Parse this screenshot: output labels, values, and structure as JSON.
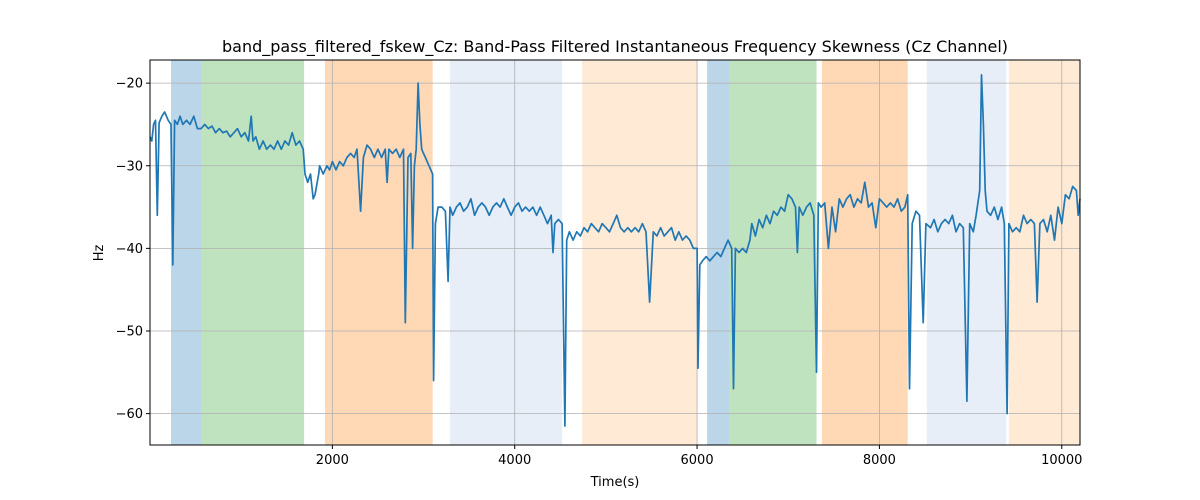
{
  "chart_data": {
    "type": "line",
    "title": "band_pass_filtered_fskew_Cz: Band-Pass Filtered Instantaneous Frequency Skewness (Cz Channel)",
    "xlabel": "Time(s)",
    "ylabel": "Hz",
    "xlim": [
      0,
      10200
    ],
    "ylim": [
      -63.8,
      -17.2
    ],
    "grid": true,
    "x_ticks": [
      2000,
      4000,
      6000,
      8000,
      10000
    ],
    "y_ticks": [
      -20,
      -30,
      -40,
      -50,
      -60
    ],
    "line_color": "#1f77b4",
    "bands": [
      {
        "start": 230,
        "end": 560,
        "color": "#1f77b4",
        "opacity": 0.3
      },
      {
        "start": 560,
        "end": 1690,
        "color": "#2ca02c",
        "opacity": 0.3
      },
      {
        "start": 1920,
        "end": 3100,
        "color": "#ff7f0e",
        "opacity": 0.3
      },
      {
        "start": 3290,
        "end": 4520,
        "color": "#aec7e8",
        "opacity": 0.3
      },
      {
        "start": 4740,
        "end": 6000,
        "color": "#ffbb78",
        "opacity": 0.3
      },
      {
        "start": 6110,
        "end": 6350,
        "color": "#1f77b4",
        "opacity": 0.3
      },
      {
        "start": 6350,
        "end": 7310,
        "color": "#2ca02c",
        "opacity": 0.3
      },
      {
        "start": 7370,
        "end": 8310,
        "color": "#ff7f0e",
        "opacity": 0.3
      },
      {
        "start": 8520,
        "end": 9390,
        "color": "#aec7e8",
        "opacity": 0.3
      },
      {
        "start": 9420,
        "end": 10200,
        "color": "#ffbb78",
        "opacity": 0.3
      }
    ],
    "series": [
      {
        "points": [
          [
            0,
            -26.5
          ],
          [
            20,
            -27
          ],
          [
            40,
            -25
          ],
          [
            60,
            -24.5
          ],
          [
            80,
            -36
          ],
          [
            100,
            -24.8
          ],
          [
            130,
            -24
          ],
          [
            160,
            -23.5
          ],
          [
            200,
            -24.5
          ],
          [
            230,
            -25
          ],
          [
            250,
            -42
          ],
          [
            270,
            -24.5
          ],
          [
            300,
            -25
          ],
          [
            330,
            -24
          ],
          [
            360,
            -25
          ],
          [
            400,
            -24.5
          ],
          [
            440,
            -25
          ],
          [
            480,
            -24
          ],
          [
            520,
            -25.5
          ],
          [
            560,
            -25.5
          ],
          [
            600,
            -25
          ],
          [
            640,
            -25.5
          ],
          [
            680,
            -25.2
          ],
          [
            720,
            -26
          ],
          [
            760,
            -25.5
          ],
          [
            800,
            -26
          ],
          [
            840,
            -25.8
          ],
          [
            880,
            -26.5
          ],
          [
            920,
            -26
          ],
          [
            960,
            -25.5
          ],
          [
            1000,
            -26.5
          ],
          [
            1040,
            -26
          ],
          [
            1080,
            -27
          ],
          [
            1110,
            -24
          ],
          [
            1130,
            -27
          ],
          [
            1160,
            -26.5
          ],
          [
            1200,
            -28
          ],
          [
            1240,
            -27
          ],
          [
            1280,
            -28
          ],
          [
            1320,
            -27.5
          ],
          [
            1360,
            -28
          ],
          [
            1400,
            -27
          ],
          [
            1440,
            -28
          ],
          [
            1480,
            -27
          ],
          [
            1520,
            -27.5
          ],
          [
            1560,
            -26
          ],
          [
            1600,
            -27.5
          ],
          [
            1640,
            -27
          ],
          [
            1680,
            -28
          ],
          [
            1700,
            -31
          ],
          [
            1730,
            -32
          ],
          [
            1760,
            -31
          ],
          [
            1790,
            -34
          ],
          [
            1810,
            -33.5
          ],
          [
            1850,
            -31
          ],
          [
            1860,
            -30
          ],
          [
            1900,
            -31
          ],
          [
            1940,
            -30
          ],
          [
            1970,
            -30.5
          ],
          [
            2000,
            -29.5
          ],
          [
            2040,
            -30.5
          ],
          [
            2080,
            -29.5
          ],
          [
            2120,
            -30
          ],
          [
            2160,
            -29
          ],
          [
            2200,
            -28.5
          ],
          [
            2240,
            -29
          ],
          [
            2270,
            -28
          ],
          [
            2310,
            -35.5
          ],
          [
            2340,
            -29
          ],
          [
            2380,
            -27.5
          ],
          [
            2420,
            -28
          ],
          [
            2460,
            -29
          ],
          [
            2500,
            -28
          ],
          [
            2540,
            -29
          ],
          [
            2580,
            -28
          ],
          [
            2600,
            -32
          ],
          [
            2620,
            -28
          ],
          [
            2660,
            -28.5
          ],
          [
            2700,
            -28
          ],
          [
            2740,
            -29
          ],
          [
            2780,
            -28
          ],
          [
            2800,
            -49
          ],
          [
            2830,
            -29
          ],
          [
            2860,
            -28.5
          ],
          [
            2880,
            -40
          ],
          [
            2900,
            -30
          ],
          [
            2920,
            -28
          ],
          [
            2940,
            -20
          ],
          [
            2960,
            -25
          ],
          [
            2980,
            -28
          ],
          [
            3000,
            -28.5
          ],
          [
            3020,
            -29
          ],
          [
            3060,
            -30
          ],
          [
            3100,
            -31
          ],
          [
            3110,
            -56
          ],
          [
            3130,
            -37
          ],
          [
            3160,
            -35
          ],
          [
            3200,
            -35
          ],
          [
            3240,
            -35.5
          ],
          [
            3270,
            -44
          ],
          [
            3290,
            -35
          ],
          [
            3320,
            -36
          ],
          [
            3360,
            -35
          ],
          [
            3400,
            -34.5
          ],
          [
            3440,
            -35.5
          ],
          [
            3480,
            -35
          ],
          [
            3520,
            -34
          ],
          [
            3560,
            -36
          ],
          [
            3600,
            -35
          ],
          [
            3640,
            -34.5
          ],
          [
            3680,
            -35
          ],
          [
            3720,
            -36
          ],
          [
            3760,
            -35
          ],
          [
            3800,
            -34.5
          ],
          [
            3840,
            -35
          ],
          [
            3880,
            -34
          ],
          [
            3920,
            -35
          ],
          [
            3960,
            -36
          ],
          [
            4000,
            -35
          ],
          [
            4040,
            -34.5
          ],
          [
            4080,
            -35.5
          ],
          [
            4120,
            -35
          ],
          [
            4160,
            -35.5
          ],
          [
            4200,
            -35
          ],
          [
            4240,
            -36
          ],
          [
            4280,
            -35
          ],
          [
            4320,
            -36
          ],
          [
            4360,
            -37
          ],
          [
            4400,
            -36
          ],
          [
            4420,
            -40.5
          ],
          [
            4440,
            -37
          ],
          [
            4480,
            -36.5
          ],
          [
            4520,
            -37
          ],
          [
            4550,
            -61.5
          ],
          [
            4570,
            -39
          ],
          [
            4600,
            -38
          ],
          [
            4640,
            -39
          ],
          [
            4680,
            -38
          ],
          [
            4720,
            -38.5
          ],
          [
            4760,
            -37.5
          ],
          [
            4800,
            -38
          ],
          [
            4840,
            -37
          ],
          [
            4880,
            -37.5
          ],
          [
            4920,
            -38
          ],
          [
            4960,
            -37
          ],
          [
            5000,
            -37.5
          ],
          [
            5040,
            -38
          ],
          [
            5080,
            -37
          ],
          [
            5120,
            -36
          ],
          [
            5160,
            -37.5
          ],
          [
            5200,
            -38
          ],
          [
            5240,
            -37.5
          ],
          [
            5280,
            -38
          ],
          [
            5320,
            -37.5
          ],
          [
            5360,
            -38
          ],
          [
            5400,
            -37
          ],
          [
            5440,
            -38
          ],
          [
            5480,
            -46.5
          ],
          [
            5520,
            -38
          ],
          [
            5560,
            -38.5
          ],
          [
            5600,
            -37.5
          ],
          [
            5640,
            -38.5
          ],
          [
            5680,
            -38
          ],
          [
            5720,
            -37.5
          ],
          [
            5760,
            -39
          ],
          [
            5800,
            -38
          ],
          [
            5840,
            -39
          ],
          [
            5880,
            -38.5
          ],
          [
            5920,
            -39
          ],
          [
            5960,
            -40
          ],
          [
            6000,
            -40
          ],
          [
            6010,
            -54.5
          ],
          [
            6030,
            -42
          ],
          [
            6060,
            -41.5
          ],
          [
            6100,
            -41
          ],
          [
            6140,
            -41.5
          ],
          [
            6180,
            -41
          ],
          [
            6220,
            -40.5
          ],
          [
            6260,
            -41
          ],
          [
            6300,
            -40
          ],
          [
            6340,
            -39
          ],
          [
            6380,
            -40
          ],
          [
            6400,
            -57
          ],
          [
            6420,
            -40
          ],
          [
            6460,
            -40.5
          ],
          [
            6500,
            -40
          ],
          [
            6540,
            -40.5
          ],
          [
            6580,
            -39
          ],
          [
            6600,
            -37
          ],
          [
            6640,
            -38.5
          ],
          [
            6680,
            -36.5
          ],
          [
            6720,
            -37.5
          ],
          [
            6760,
            -36
          ],
          [
            6800,
            -37
          ],
          [
            6840,
            -35.5
          ],
          [
            6880,
            -36
          ],
          [
            6920,
            -35
          ],
          [
            6960,
            -35.5
          ],
          [
            7000,
            -33.5
          ],
          [
            7040,
            -34
          ],
          [
            7080,
            -35
          ],
          [
            7100,
            -40.5
          ],
          [
            7120,
            -35
          ],
          [
            7160,
            -36
          ],
          [
            7200,
            -35
          ],
          [
            7240,
            -34.5
          ],
          [
            7280,
            -36
          ],
          [
            7310,
            -55
          ],
          [
            7330,
            -34.5
          ],
          [
            7360,
            -35
          ],
          [
            7400,
            -34.5
          ],
          [
            7440,
            -40
          ],
          [
            7480,
            -35
          ],
          [
            7520,
            -38
          ],
          [
            7560,
            -34
          ],
          [
            7600,
            -35
          ],
          [
            7640,
            -34
          ],
          [
            7680,
            -33.5
          ],
          [
            7720,
            -35
          ],
          [
            7760,
            -34
          ],
          [
            7800,
            -34.5
          ],
          [
            7840,
            -32
          ],
          [
            7880,
            -35
          ],
          [
            7920,
            -34.5
          ],
          [
            7960,
            -37.5
          ],
          [
            8000,
            -34
          ],
          [
            8040,
            -34.5
          ],
          [
            8080,
            -35
          ],
          [
            8120,
            -34.5
          ],
          [
            8160,
            -35
          ],
          [
            8200,
            -34
          ],
          [
            8240,
            -35.5
          ],
          [
            8280,
            -35
          ],
          [
            8310,
            -33.5
          ],
          [
            8330,
            -57
          ],
          [
            8360,
            -37
          ],
          [
            8400,
            -35.5
          ],
          [
            8440,
            -36
          ],
          [
            8480,
            -49
          ],
          [
            8510,
            -37
          ],
          [
            8560,
            -37.5
          ],
          [
            8600,
            -36.5
          ],
          [
            8640,
            -38
          ],
          [
            8680,
            -37
          ],
          [
            8720,
            -36.5
          ],
          [
            8760,
            -37
          ],
          [
            8800,
            -36
          ],
          [
            8840,
            -38
          ],
          [
            8880,
            -37
          ],
          [
            8920,
            -37.5
          ],
          [
            8960,
            -58.5
          ],
          [
            8990,
            -37
          ],
          [
            9030,
            -38
          ],
          [
            9060,
            -36
          ],
          [
            9100,
            -33
          ],
          [
            9120,
            -19
          ],
          [
            9140,
            -25
          ],
          [
            9160,
            -33
          ],
          [
            9180,
            -35.5
          ],
          [
            9220,
            -36
          ],
          [
            9260,
            -35
          ],
          [
            9300,
            -36.5
          ],
          [
            9340,
            -35
          ],
          [
            9370,
            -37
          ],
          [
            9400,
            -60
          ],
          [
            9420,
            -37
          ],
          [
            9460,
            -38
          ],
          [
            9500,
            -37.5
          ],
          [
            9540,
            -38
          ],
          [
            9580,
            -36
          ],
          [
            9620,
            -37
          ],
          [
            9660,
            -36.5
          ],
          [
            9700,
            -37
          ],
          [
            9730,
            -46.5
          ],
          [
            9760,
            -37
          ],
          [
            9800,
            -36.5
          ],
          [
            9840,
            -38
          ],
          [
            9880,
            -36
          ],
          [
            9920,
            -39
          ],
          [
            9960,
            -35
          ],
          [
            10000,
            -37
          ],
          [
            10040,
            -33.5
          ],
          [
            10080,
            -34
          ],
          [
            10120,
            -32.5
          ],
          [
            10160,
            -33
          ],
          [
            10180,
            -36
          ],
          [
            10200,
            -34
          ]
        ]
      }
    ]
  }
}
